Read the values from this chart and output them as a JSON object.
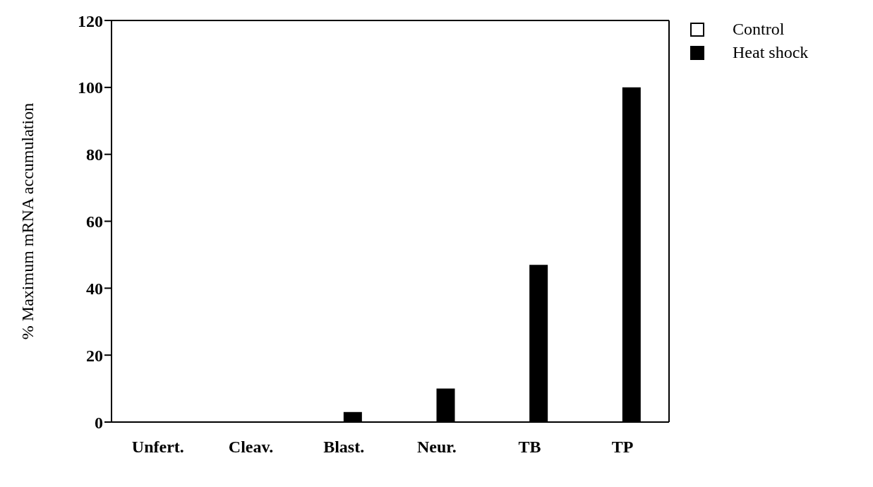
{
  "chart_data": {
    "type": "bar",
    "ylabel": "% Maximum mRNA accumulation",
    "categories": [
      "Unfert.",
      "Cleav.",
      "Blast.",
      "Neur.",
      "TB",
      "TP"
    ],
    "series": [
      {
        "name": "Control",
        "color": "#ffffff",
        "values": [
          0,
          0,
          0,
          0,
          0,
          0
        ]
      },
      {
        "name": "Heat shock",
        "color": "#000000",
        "values": [
          0,
          0,
          3,
          10,
          47,
          100
        ]
      }
    ],
    "ylim": [
      0,
      120
    ],
    "yticks": [
      0,
      20,
      40,
      60,
      80,
      100,
      120
    ],
    "legend": "top right"
  }
}
